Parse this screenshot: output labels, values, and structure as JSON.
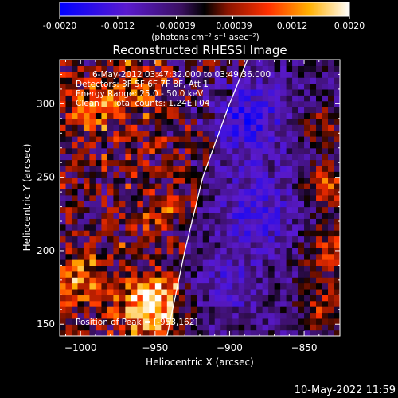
{
  "colorbar": {
    "ticks": [
      "-0.0020",
      "-0.0012",
      "-0.00039",
      "0.00039",
      "0.0012",
      "0.0020"
    ],
    "range": [
      -0.002,
      0.002
    ],
    "units_label": "(photons cm⁻² s⁻¹ asec⁻²)"
  },
  "title": "Reconstructed RHESSI Image",
  "annotations": {
    "time": "6-May-2012 03:47:32.000 to 03:49:36.000",
    "detectors": "Detectors: 3F 5F 6F 7F 8F, Att 1",
    "energy": "Energy Range: 25.0 - 50.0 keV",
    "clean": "Clean     Total counts: 1.24E+04",
    "peak": "Position of Peak = [-953,162]"
  },
  "footer_timestamp": "10-May-2022 11:59",
  "chart_data": {
    "type": "heatmap",
    "title": "Reconstructed RHESSI Image",
    "xlabel": "Heliocentric X (arcsec)",
    "ylabel": "Heliocentric Y (arcsec)",
    "xlim": [
      -1014,
      -826
    ],
    "ylim": [
      142,
      330
    ],
    "x_ticks": [
      -1000,
      -950,
      -900,
      -850
    ],
    "y_ticks": [
      150,
      200,
      250,
      300
    ],
    "x_tick_labels": [
      "−1000",
      "−950",
      "−900",
      "−850"
    ],
    "y_tick_labels": [
      "150",
      "200",
      "250",
      "300"
    ],
    "limb_curve": [
      [
        -942,
        142
      ],
      [
        -930,
        200
      ],
      [
        -918,
        250
      ],
      [
        -900,
        300
      ],
      [
        -888,
        330
      ]
    ],
    "peak": [
      -953,
      162
    ],
    "hot_spots": [
      {
        "x": -953,
        "y": 162,
        "r": 14,
        "amp": 0.002
      },
      {
        "x": -1000,
        "y": 180,
        "r": 13,
        "amp": 0.0012
      },
      {
        "x": -990,
        "y": 300,
        "r": 12,
        "amp": 0.0011
      },
      {
        "x": -960,
        "y": 310,
        "r": 10,
        "amp": 0.0009
      },
      {
        "x": -945,
        "y": 230,
        "r": 8,
        "amp": 0.0007
      },
      {
        "x": -835,
        "y": 245,
        "r": 10,
        "amp": 0.0014
      },
      {
        "x": -832,
        "y": 200,
        "r": 12,
        "amp": 0.0011
      },
      {
        "x": -836,
        "y": 160,
        "r": 11,
        "amp": 0.001
      },
      {
        "x": -838,
        "y": 285,
        "r": 9,
        "amp": 0.0009
      }
    ],
    "cold_spots": [
      {
        "x": -890,
        "y": 290,
        "r": 20,
        "amp": -0.001
      },
      {
        "x": -880,
        "y": 225,
        "r": 18,
        "amp": -0.0008
      },
      {
        "x": -900,
        "y": 175,
        "r": 14,
        "amp": -0.0006
      }
    ]
  }
}
